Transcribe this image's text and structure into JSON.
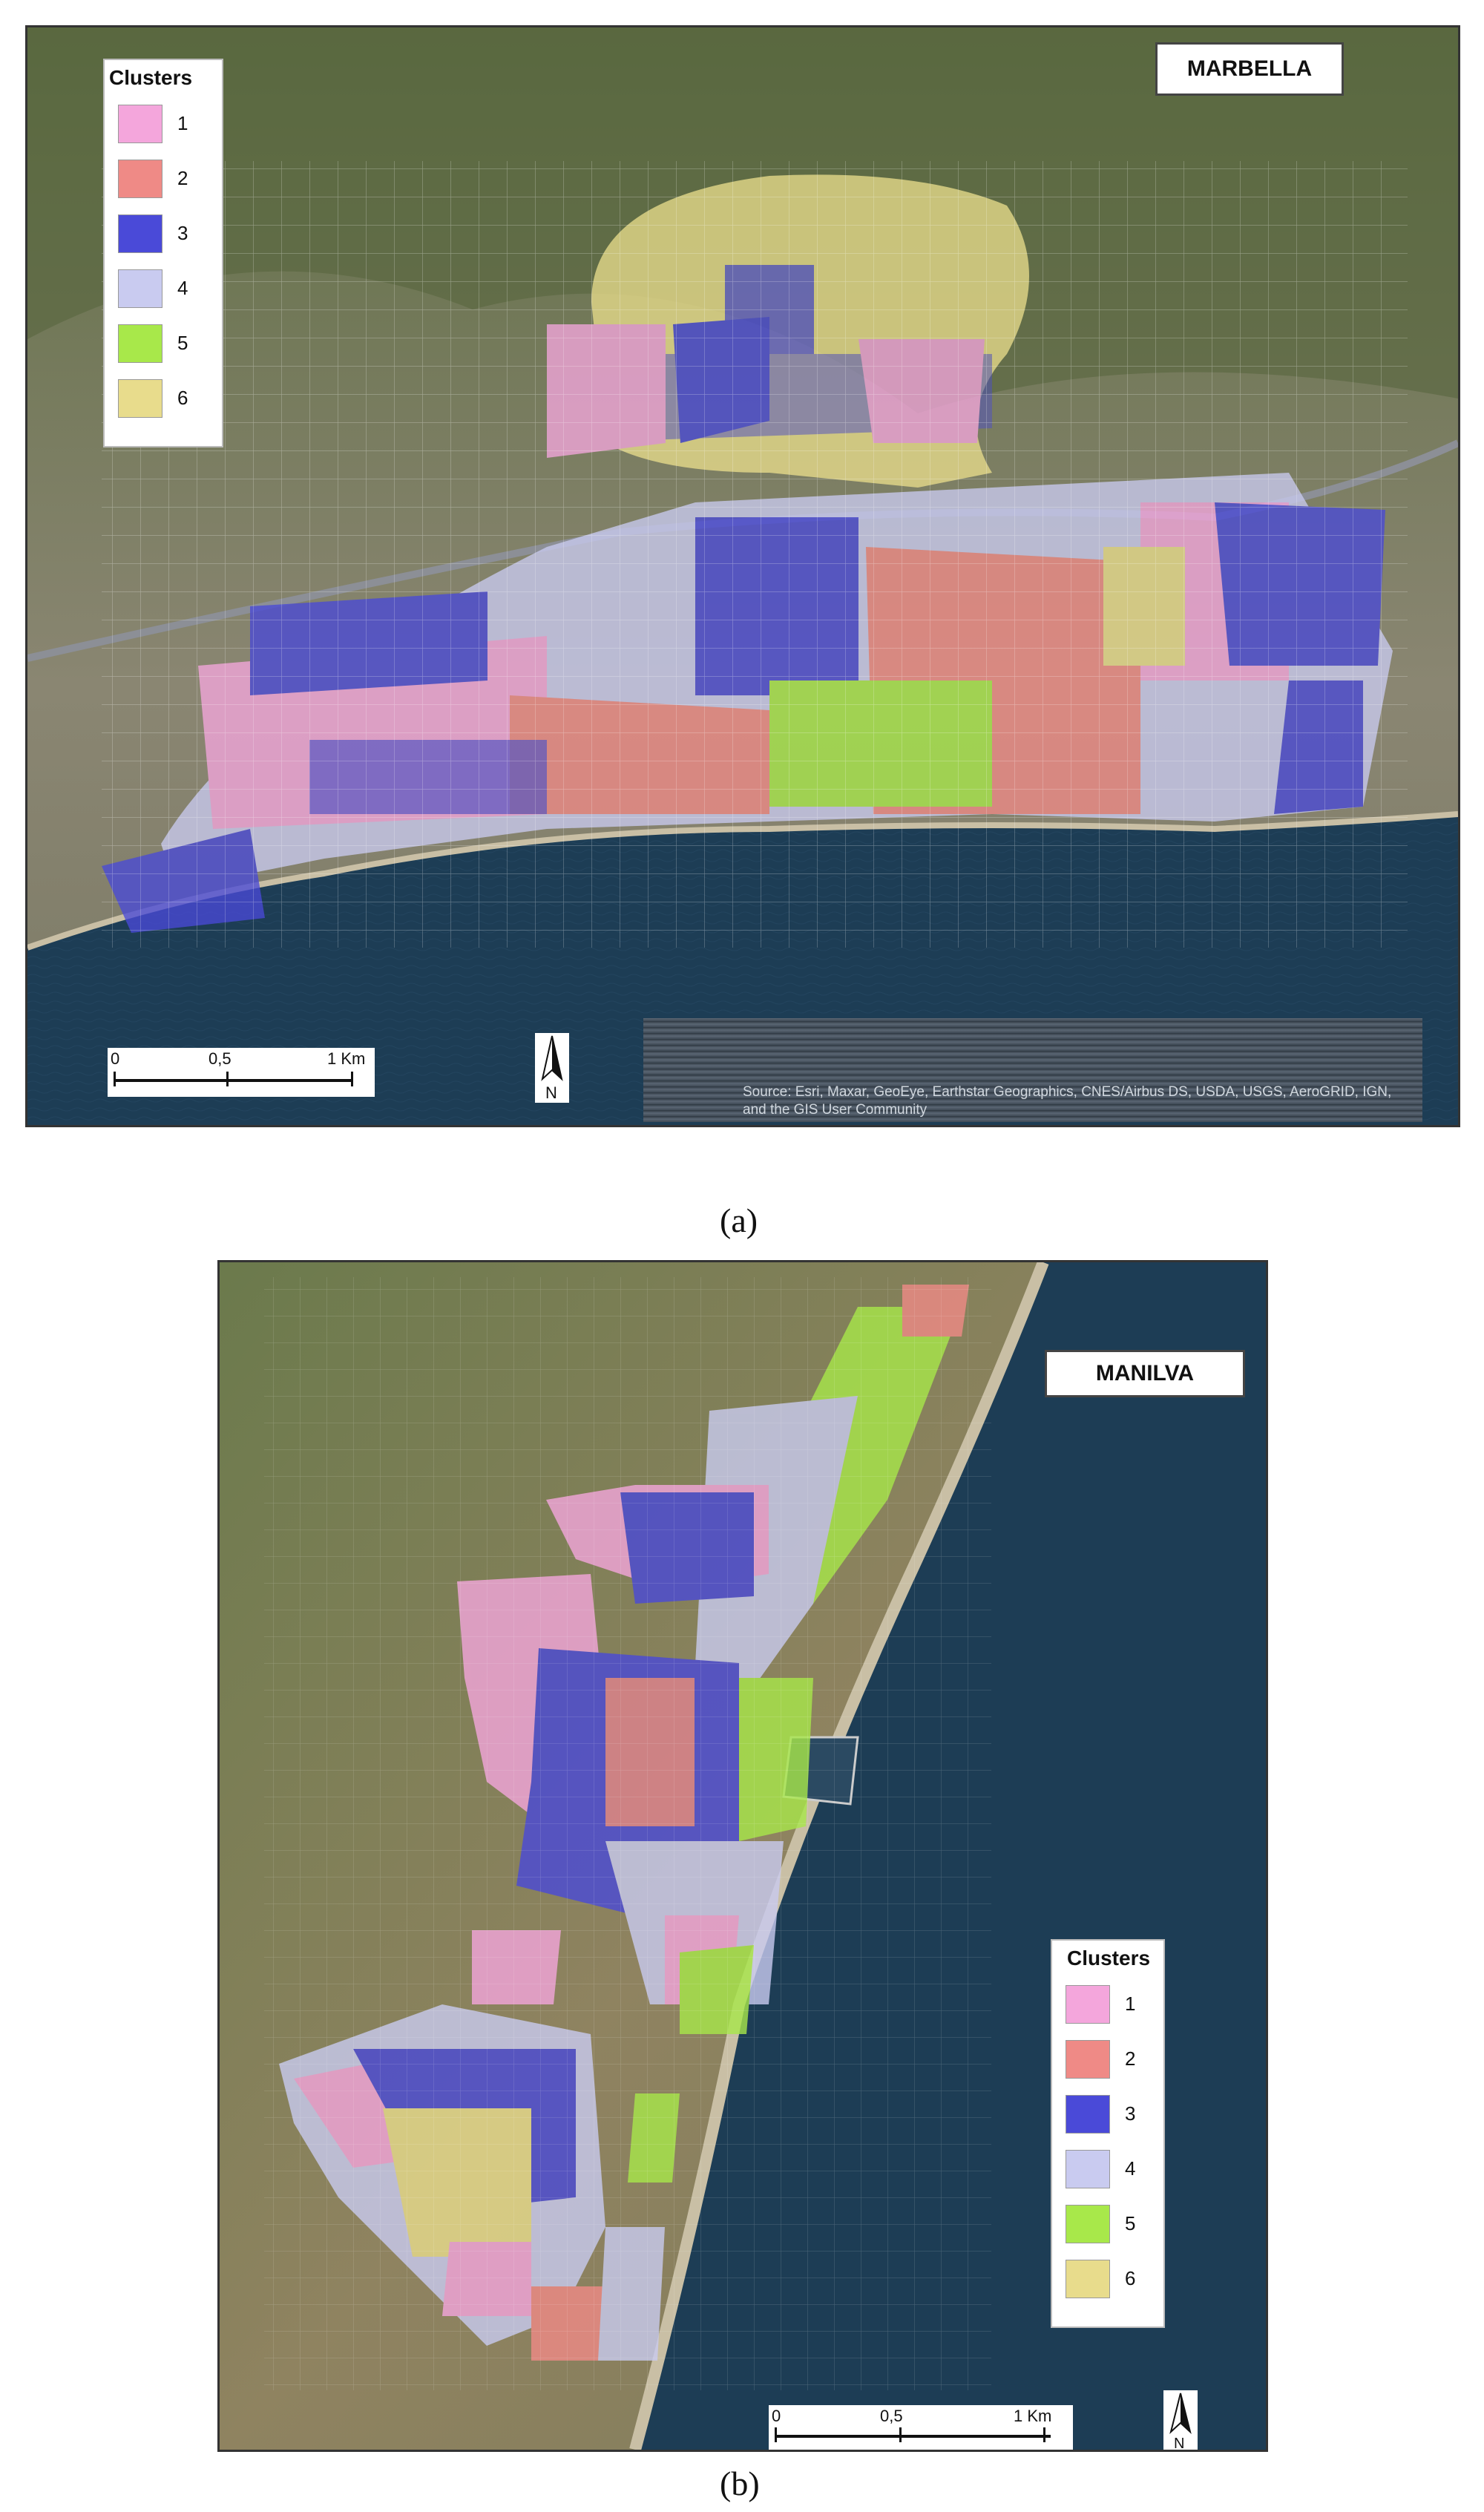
{
  "panels": [
    {
      "id": "a",
      "title": "MARBELLA",
      "caption": "(a)",
      "legend_title": "Clusters",
      "scalebar": {
        "labels": [
          "0",
          "0,5",
          "1 Km"
        ]
      },
      "north_label": "N",
      "attribution": "Source: Esri, Maxar, GeoEye, Earthstar Geographics, CNES/Airbus DS, USDA, USGS, AeroGRID, IGN, and the GIS User Community"
    },
    {
      "id": "b",
      "title": "MANILVA",
      "caption": "(b)",
      "legend_title": "Clusters",
      "scalebar": {
        "labels": [
          "0",
          "0,5",
          "1 Km"
        ]
      },
      "north_label": "N"
    }
  ],
  "clusters": [
    {
      "label": "1",
      "color": "#f4a6dc"
    },
    {
      "label": "2",
      "color": "#ef8a86"
    },
    {
      "label": "3",
      "color": "#4a4ad8"
    },
    {
      "label": "4",
      "color": "#c9cbf0"
    },
    {
      "label": "5",
      "color": "#a8e84a"
    },
    {
      "label": "6",
      "color": "#e8dc8c"
    }
  ],
  "map_colors": {
    "land": "#6f7a4e",
    "urban": "#a69a8a",
    "sea": "#1d3d55",
    "beach": "#c9bfa5"
  }
}
